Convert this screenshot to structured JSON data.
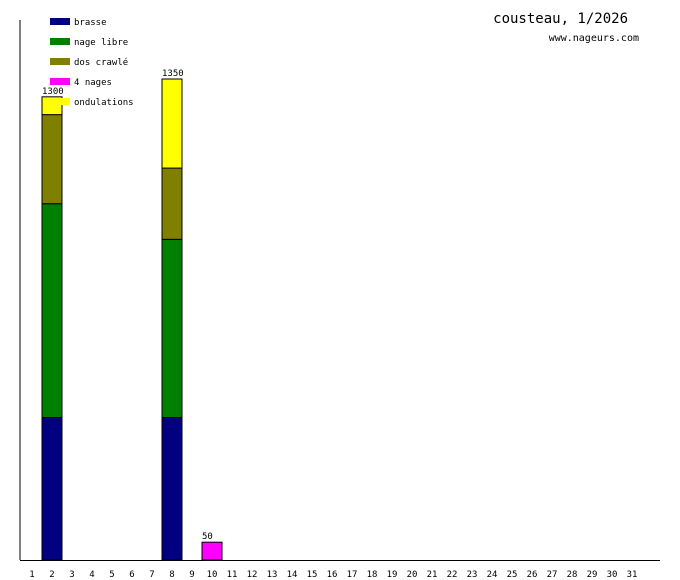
{
  "chart_data": {
    "type": "bar",
    "stacked": true,
    "title": "cousteau, 1/2026",
    "subtitle": "www.nageurs.com",
    "legend_position": "top-left",
    "grid": false,
    "categories": [
      "1",
      "2",
      "3",
      "4",
      "5",
      "6",
      "7",
      "8",
      "9",
      "10",
      "11",
      "12",
      "13",
      "14",
      "15",
      "16",
      "17",
      "18",
      "19",
      "20",
      "21",
      "22",
      "23",
      "24",
      "25",
      "26",
      "27",
      "28",
      "29",
      "30",
      "31"
    ],
    "series": [
      {
        "name": "brasse",
        "color": "#000080",
        "values": [
          0,
          400,
          0,
          0,
          0,
          0,
          0,
          400,
          0,
          0,
          0,
          0,
          0,
          0,
          0,
          0,
          0,
          0,
          0,
          0,
          0,
          0,
          0,
          0,
          0,
          0,
          0,
          0,
          0,
          0,
          0
        ]
      },
      {
        "name": "nage libre",
        "color": "#008000",
        "values": [
          0,
          600,
          0,
          0,
          0,
          0,
          0,
          500,
          0,
          0,
          0,
          0,
          0,
          0,
          0,
          0,
          0,
          0,
          0,
          0,
          0,
          0,
          0,
          0,
          0,
          0,
          0,
          0,
          0,
          0,
          0
        ]
      },
      {
        "name": "dos crawlé",
        "color": "#808000",
        "values": [
          0,
          250,
          0,
          0,
          0,
          0,
          0,
          200,
          0,
          0,
          0,
          0,
          0,
          0,
          0,
          0,
          0,
          0,
          0,
          0,
          0,
          0,
          0,
          0,
          0,
          0,
          0,
          0,
          0,
          0,
          0
        ]
      },
      {
        "name": "4 nages",
        "color": "#ff00ff",
        "values": [
          0,
          0,
          0,
          0,
          0,
          0,
          0,
          0,
          0,
          50,
          0,
          0,
          0,
          0,
          0,
          0,
          0,
          0,
          0,
          0,
          0,
          0,
          0,
          0,
          0,
          0,
          0,
          0,
          0,
          0,
          0
        ]
      },
      {
        "name": "ondulations",
        "color": "#ffff00",
        "values": [
          0,
          50,
          0,
          0,
          0,
          0,
          0,
          250,
          0,
          0,
          0,
          0,
          0,
          0,
          0,
          0,
          0,
          0,
          0,
          0,
          0,
          0,
          0,
          0,
          0,
          0,
          0,
          0,
          0,
          0,
          0
        ]
      }
    ],
    "totals": [
      {
        "category": "2",
        "label": "1300"
      },
      {
        "category": "8",
        "label": "1350"
      },
      {
        "category": "10",
        "label": "50"
      }
    ],
    "ylim": [
      0,
      1350
    ]
  }
}
